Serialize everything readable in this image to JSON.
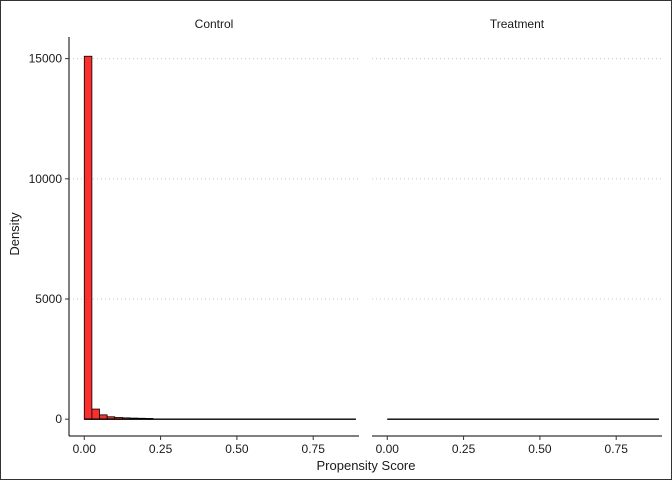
{
  "chart_data": {
    "type": "bar",
    "panels": [
      {
        "title": "Control",
        "fill": "#F8312F",
        "bins": [
          {
            "x0": 0.0,
            "x1": 0.025,
            "value": 15100
          },
          {
            "x0": 0.025,
            "x1": 0.05,
            "value": 420
          },
          {
            "x0": 0.05,
            "x1": 0.075,
            "value": 180
          },
          {
            "x0": 0.075,
            "x1": 0.1,
            "value": 100
          },
          {
            "x0": 0.1,
            "x1": 0.125,
            "value": 70
          },
          {
            "x0": 0.125,
            "x1": 0.15,
            "value": 55
          },
          {
            "x0": 0.15,
            "x1": 0.175,
            "value": 45
          },
          {
            "x0": 0.175,
            "x1": 0.2,
            "value": 38
          },
          {
            "x0": 0.2,
            "x1": 0.225,
            "value": 30
          },
          {
            "x0": 0.225,
            "x1": 0.25,
            "value": 0
          }
        ]
      },
      {
        "title": "Treatment",
        "fill": "#F8312F",
        "bins": []
      }
    ],
    "xlabel": "Propensity Score",
    "ylabel": "Density",
    "x_ticks": [
      "0.00",
      "0.25",
      "0.50",
      "0.75"
    ],
    "x_tick_values": [
      0,
      0.25,
      0.5,
      0.75
    ],
    "y_ticks": [
      "0",
      "5000",
      "10000",
      "15000"
    ],
    "y_tick_values": [
      0,
      5000,
      10000,
      15000
    ],
    "xlim": [
      -0.05,
      0.9
    ],
    "ylim": [
      -700,
      15900
    ],
    "grid": "horizontal dotted",
    "legend": "none"
  }
}
